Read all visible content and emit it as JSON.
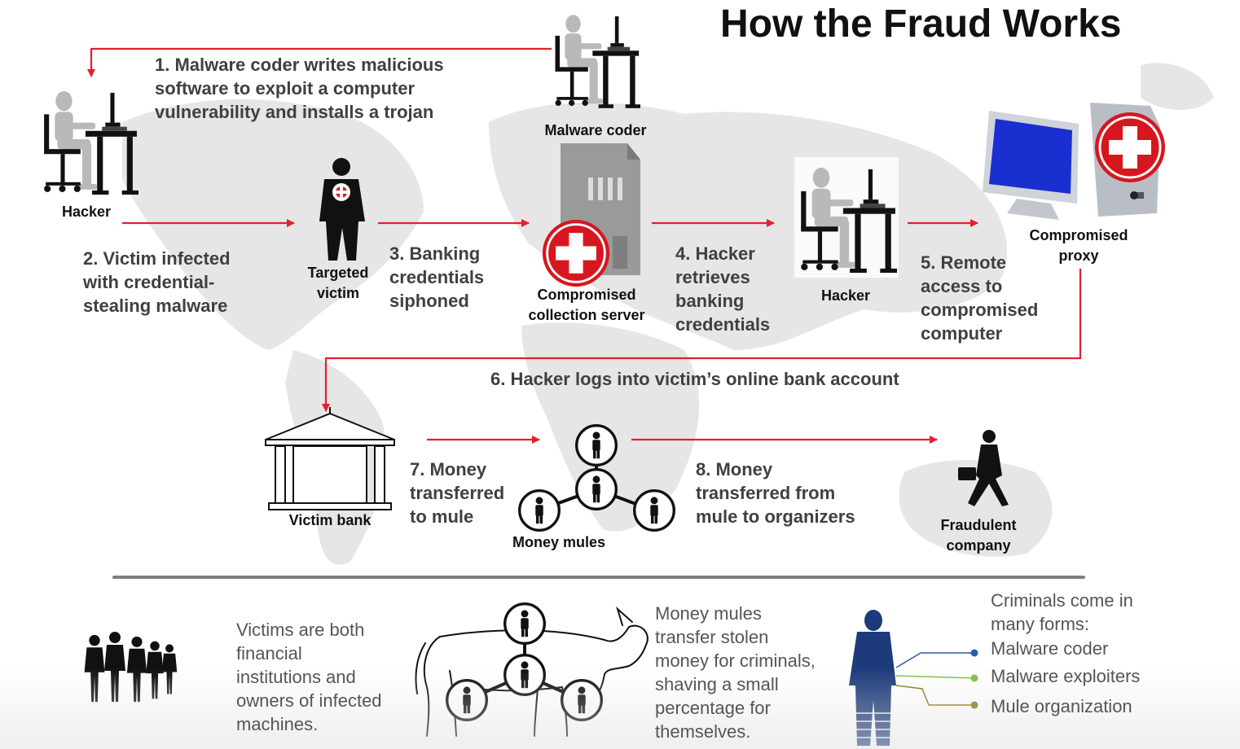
{
  "title": "How the Fraud Works",
  "steps": {
    "s1": "1. Malware coder writes malicious\nsoftware to exploit a computer\nvulnerability and installs a trojan",
    "s2": "2. Victim infected\nwith credential-\nstealing malware",
    "s3": "3. Banking\ncredentials\nsiphoned",
    "s4": "4. Hacker\nretrieves\nbanking\ncredentials",
    "s5": "5. Remote\naccess to\ncompromised\ncomputer",
    "s6": "6. Hacker logs into victim’s online bank account",
    "s7": "7. Money\ntransferred\nto mule",
    "s8": "8. Money\ntransferred from\nmule to organizers"
  },
  "labels": {
    "malware_coder": "Malware coder",
    "hacker_1": "Hacker",
    "targeted_victim": "Targeted\nvictim",
    "collection_server": "Compromised\ncollection server",
    "hacker_2": "Hacker",
    "compromised_proxy": "Compromised\nproxy",
    "victim_bank": "Victim bank",
    "money_mules": "Money mules",
    "fraudulent_company": "Fraudulent\ncompany"
  },
  "notes": {
    "victims": "Victims are both\nfinancial\ninstitutions and\nowners of infected\nmachines.",
    "mules": "Money mules\ntransfer stolen\nmoney for criminals,\nshaving a small\npercentage for\nthemselves.",
    "criminals_title": "Criminals come in\nmany forms:",
    "criminal_types": [
      "Malware coder",
      "Malware exploiters",
      "Mule organization"
    ]
  },
  "colors": {
    "arrow": "#e0202e",
    "icon_gray": "#b9b9b9",
    "icon_black": "#111111",
    "map_gray": "#e6e6e6",
    "criminal_blue": "#1d3b7a",
    "dot_blue": "#2a5db0",
    "dot_green": "#7cc242",
    "dot_olive": "#8a7a1a"
  },
  "icons": {
    "hacker": "person-at-desk-icon",
    "victim": "target-person-icon",
    "server": "server-tower-icon",
    "red_cross": "red-cross-icon",
    "computer": "desktop-computer-icon",
    "bank": "bank-building-icon",
    "mule": "mule-network-icon",
    "businessman": "businessman-walking-icon",
    "crowd": "crowd-silhouette-icon",
    "donkey": "donkey-icon",
    "criminal": "criminal-silhouette-icon"
  }
}
